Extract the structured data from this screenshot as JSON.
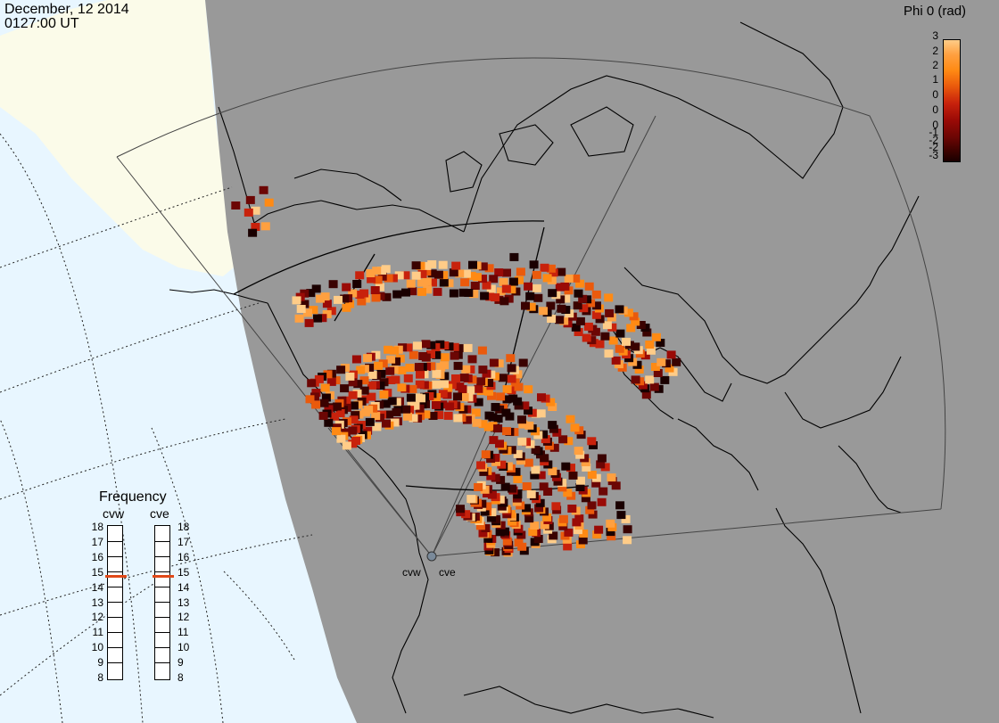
{
  "header": {
    "date": "December, 12 2014",
    "time": "0127:00 UT"
  },
  "legend": {
    "title": "Phi 0 (rad)",
    "ticks": [
      "3",
      "2",
      "2",
      "1",
      "0",
      "0",
      "0",
      "-1",
      "-2",
      "-2",
      "-3"
    ]
  },
  "frequency": {
    "title": "Frequency",
    "radars": [
      {
        "name": "cvw",
        "current": 15
      },
      {
        "name": "cve",
        "current": 15
      }
    ],
    "scale": [
      "18",
      "17",
      "16",
      "15",
      "14",
      "13",
      "12",
      "11",
      "10",
      "9",
      "8"
    ]
  },
  "sites": [
    "cvw",
    "cve"
  ],
  "colors": {
    "ocean": "#e8f6ff",
    "land_day": "#fbfbe9",
    "night": "#999999",
    "accent": "#e04818"
  }
}
